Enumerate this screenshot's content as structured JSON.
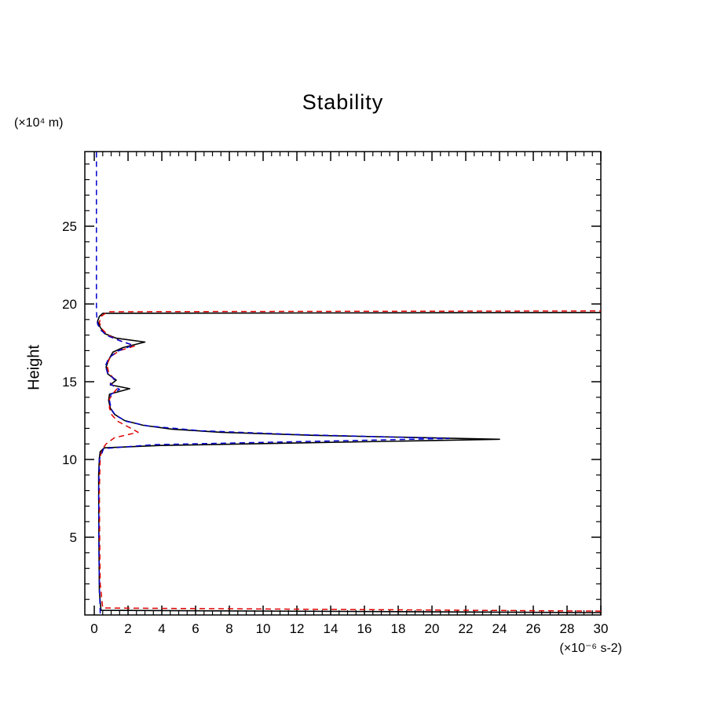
{
  "page": {
    "background": "#ffffff"
  },
  "chart_data": {
    "type": "line",
    "title": "Stability",
    "ylabel": "Height",
    "y_unit_label": "(×10⁴ m)",
    "x_unit_label": "(×10⁻⁶ s-2)",
    "xlim": [
      -0.56,
      30
    ],
    "ylim": [
      0,
      29.8
    ],
    "x_major_ticks": [
      0,
      2,
      4,
      6,
      8,
      10,
      12,
      14,
      16,
      18,
      20,
      22,
      24,
      26,
      28,
      30
    ],
    "x_minor_step": 0.5,
    "y_major_ticks": [
      5,
      10,
      15,
      20,
      25
    ],
    "y_minor_step": 1,
    "grid": false,
    "legend": "none",
    "frame_color": "#000000",
    "series": [
      {
        "name": "stability-profile-solid-black",
        "color": "#000000",
        "style": "solid",
        "width": 1.6,
        "points": [
          [
            30,
            0.15
          ],
          [
            0.4,
            0.3
          ],
          [
            0.3,
            1.5
          ],
          [
            0.28,
            4
          ],
          [
            0.27,
            6.5
          ],
          [
            0.26,
            9
          ],
          [
            0.3,
            10.1
          ],
          [
            0.35,
            10.5
          ],
          [
            0.6,
            10.75
          ],
          [
            3.9,
            10.9
          ],
          [
            24,
            11.3
          ],
          [
            13,
            11.55
          ],
          [
            7.5,
            11.75
          ],
          [
            4.6,
            11.95
          ],
          [
            2.9,
            12.2
          ],
          [
            1.8,
            12.5
          ],
          [
            1.2,
            12.9
          ],
          [
            0.95,
            13.3
          ],
          [
            0.85,
            13.8
          ],
          [
            0.9,
            14.2
          ],
          [
            2.1,
            14.55
          ],
          [
            0.95,
            14.8
          ],
          [
            1.3,
            15.1
          ],
          [
            0.8,
            15.5
          ],
          [
            0.7,
            15.95
          ],
          [
            0.85,
            16.4
          ],
          [
            1.1,
            16.9
          ],
          [
            1.7,
            17.2
          ],
          [
            3.0,
            17.55
          ],
          [
            1.3,
            17.8
          ],
          [
            0.6,
            18.1
          ],
          [
            0.35,
            18.5
          ],
          [
            0.2,
            18.9
          ],
          [
            0.3,
            19.2
          ],
          [
            0.5,
            19.4
          ],
          [
            30,
            19.45
          ]
        ]
      },
      {
        "name": "stability-profile-dashed-red",
        "color": "#dd0000",
        "style": "dashed",
        "width": 1.5,
        "points": [
          [
            30,
            0.25
          ],
          [
            0.5,
            0.45
          ],
          [
            0.35,
            2
          ],
          [
            0.32,
            5
          ],
          [
            0.3,
            8
          ],
          [
            0.35,
            10.2
          ],
          [
            0.5,
            10.7
          ],
          [
            0.7,
            11.0
          ],
          [
            1.2,
            11.4
          ],
          [
            2.6,
            11.75
          ],
          [
            2.0,
            12.1
          ],
          [
            1.4,
            12.45
          ],
          [
            1.05,
            12.85
          ],
          [
            0.9,
            13.3
          ],
          [
            0.9,
            13.9
          ],
          [
            1.15,
            14.3
          ],
          [
            1.35,
            14.55
          ],
          [
            0.95,
            14.9
          ],
          [
            1.15,
            15.2
          ],
          [
            0.85,
            15.6
          ],
          [
            0.75,
            16.1
          ],
          [
            0.95,
            16.6
          ],
          [
            1.5,
            17.0
          ],
          [
            2.4,
            17.3
          ],
          [
            1.5,
            17.65
          ],
          [
            0.8,
            18.0
          ],
          [
            0.45,
            18.4
          ],
          [
            0.3,
            18.8
          ],
          [
            0.4,
            19.2
          ],
          [
            0.8,
            19.5
          ],
          [
            30,
            19.55
          ]
        ]
      },
      {
        "name": "stability-profile-dashed-blue",
        "color": "#0000cd",
        "style": "dashed",
        "width": 1.5,
        "points": [
          [
            0.35,
            0.1
          ],
          [
            0.3,
            2
          ],
          [
            0.27,
            5
          ],
          [
            0.26,
            8
          ],
          [
            0.3,
            10.0
          ],
          [
            0.45,
            10.4
          ],
          [
            0.55,
            10.7
          ],
          [
            3.5,
            10.95
          ],
          [
            21,
            11.35
          ],
          [
            12,
            11.6
          ],
          [
            6.3,
            11.85
          ],
          [
            3.2,
            12.15
          ],
          [
            1.9,
            12.45
          ],
          [
            1.25,
            12.85
          ],
          [
            1.0,
            13.25
          ],
          [
            0.9,
            13.8
          ],
          [
            1.0,
            14.2
          ],
          [
            1.5,
            14.5
          ],
          [
            0.95,
            14.85
          ],
          [
            1.2,
            15.15
          ],
          [
            0.8,
            15.55
          ],
          [
            0.65,
            16.0
          ],
          [
            0.85,
            16.5
          ],
          [
            1.35,
            16.95
          ],
          [
            2.3,
            17.35
          ],
          [
            1.6,
            17.6
          ],
          [
            0.8,
            17.95
          ],
          [
            0.4,
            18.3
          ],
          [
            0.2,
            18.7
          ],
          [
            0.15,
            19.1
          ],
          [
            0.13,
            19.6
          ],
          [
            0.13,
            22
          ],
          [
            0.13,
            25
          ],
          [
            0.13,
            27.5
          ],
          [
            0.13,
            29.8
          ]
        ]
      }
    ]
  }
}
